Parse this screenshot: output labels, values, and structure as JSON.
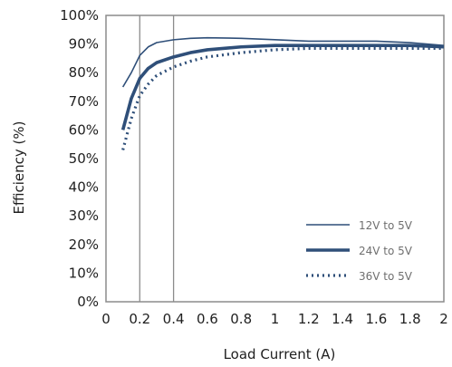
{
  "chart_data": {
    "type": "line",
    "title": "",
    "xlabel": "Load Current (A)",
    "ylabel": "Efficiency (%)",
    "xlim": [
      0,
      2
    ],
    "ylim": [
      0,
      100
    ],
    "x_ticks": [
      0,
      0.2,
      0.4,
      0.6,
      0.8,
      1,
      1.2,
      1.4,
      1.6,
      1.8,
      2
    ],
    "x_tick_labels": [
      "0",
      "0.2",
      "0.4",
      "0.6",
      "0.8",
      "1",
      "1.2",
      "1.4",
      "1.6",
      "1.8",
      "2"
    ],
    "y_ticks": [
      0,
      10,
      20,
      30,
      40,
      50,
      60,
      70,
      80,
      90,
      100
    ],
    "y_tick_labels": [
      "0%",
      "10%",
      "20%",
      "30%",
      "40%",
      "50%",
      "60%",
      "70%",
      "80%",
      "90%",
      "100%"
    ],
    "vertical_gridlines_at": [
      0.2,
      0.4
    ],
    "legend_position": "bottom-right",
    "series": [
      {
        "name": "12V to 5V",
        "style": "thin-solid",
        "color": "#2f4f79",
        "x": [
          0.1,
          0.15,
          0.2,
          0.25,
          0.3,
          0.4,
          0.5,
          0.6,
          0.8,
          1.0,
          1.2,
          1.4,
          1.6,
          1.8,
          2.0
        ],
        "y": [
          75,
          80,
          86,
          89,
          90.5,
          91.5,
          92,
          92.2,
          92,
          91.5,
          91,
          91,
          91,
          90.5,
          89.5
        ]
      },
      {
        "name": "24V to 5V",
        "style": "thick-solid",
        "color": "#2f4f79",
        "x": [
          0.1,
          0.15,
          0.2,
          0.25,
          0.3,
          0.4,
          0.5,
          0.6,
          0.8,
          1.0,
          1.2,
          1.4,
          1.6,
          1.8,
          2.0
        ],
        "y": [
          60,
          71,
          78,
          81.5,
          83.5,
          85.5,
          87,
          88,
          89,
          89.5,
          89.5,
          89.5,
          89.5,
          89.5,
          89
        ]
      },
      {
        "name": "36V to 5V",
        "style": "dotted",
        "color": "#2f4f79",
        "x": [
          0.1,
          0.15,
          0.2,
          0.25,
          0.3,
          0.4,
          0.5,
          0.6,
          0.8,
          1.0,
          1.2,
          1.4,
          1.6,
          1.8,
          2.0
        ],
        "y": [
          53,
          64,
          72,
          76,
          79,
          82,
          84,
          85.5,
          87,
          88,
          88.5,
          88.5,
          88.5,
          88.5,
          88.5
        ]
      }
    ]
  }
}
